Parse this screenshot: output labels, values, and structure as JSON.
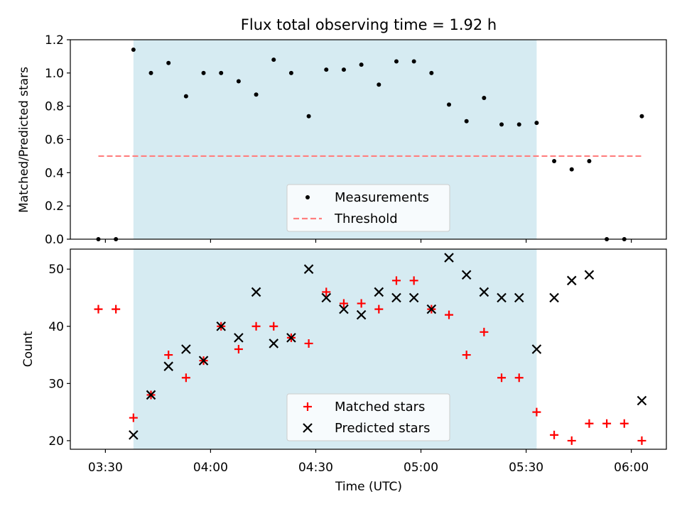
{
  "title": "Flux total observing time = 1.92 h",
  "chart_data": [
    {
      "type": "scatter",
      "ylabel": "Matched/Predicted stars",
      "ylim": [
        0,
        1.2
      ],
      "yticks": [
        0.0,
        0.2,
        0.4,
        0.6,
        0.8,
        1.0,
        1.2
      ],
      "ytick_labels": [
        "0.0",
        "0.2",
        "0.4",
        "0.6",
        "0.8",
        "1.0",
        "1.2"
      ],
      "xlim": [
        "03:20",
        "06:10"
      ],
      "grid": false,
      "legend_position": "bottom-center",
      "shaded_region": {
        "start": "03:38",
        "end": "05:33",
        "color": "#add8e6"
      },
      "series": [
        {
          "name": "Measurements",
          "marker": "dot",
          "color": "#000000",
          "x": [
            "03:28",
            "03:33",
            "03:38",
            "03:43",
            "03:48",
            "03:53",
            "03:58",
            "04:03",
            "04:08",
            "04:13",
            "04:18",
            "04:23",
            "04:28",
            "04:33",
            "04:38",
            "04:43",
            "04:48",
            "04:53",
            "04:58",
            "05:03",
            "05:08",
            "05:13",
            "05:18",
            "05:23",
            "05:28",
            "05:33",
            "05:38",
            "05:43",
            "05:48",
            "05:53",
            "05:58",
            "06:03"
          ],
          "y": [
            0.0,
            0.0,
            1.14,
            1.0,
            1.06,
            0.86,
            1.0,
            1.0,
            0.95,
            0.87,
            1.08,
            1.0,
            0.74,
            1.02,
            1.02,
            1.05,
            0.93,
            1.07,
            1.07,
            1.0,
            0.81,
            0.71,
            0.85,
            0.69,
            0.69,
            0.7,
            0.47,
            0.42,
            0.47,
            0.0,
            0.0,
            0.74
          ]
        },
        {
          "name": "Threshold",
          "style": "dashed",
          "color": "#ff7f7f",
          "x": [
            "03:28",
            "06:03"
          ],
          "y": [
            0.5,
            0.5
          ]
        }
      ]
    },
    {
      "type": "scatter",
      "ylabel": "Count",
      "xlabel": "Time (UTC)",
      "ylim": [
        18.5,
        53.5
      ],
      "yticks": [
        20,
        30,
        40,
        50
      ],
      "ytick_labels": [
        "20",
        "30",
        "40",
        "50"
      ],
      "xticks": [
        "03:30",
        "04:00",
        "04:30",
        "05:00",
        "05:30",
        "06:00"
      ],
      "xlim": [
        "03:20",
        "06:10"
      ],
      "grid": false,
      "legend_position": "bottom-center",
      "shaded_region": {
        "start": "03:38",
        "end": "05:33",
        "color": "#add8e6"
      },
      "series": [
        {
          "name": "Matched stars",
          "marker": "plus",
          "color": "#ff0000",
          "x": [
            "03:28",
            "03:33",
            "03:38",
            "03:43",
            "03:48",
            "03:53",
            "03:58",
            "04:03",
            "04:08",
            "04:13",
            "04:18",
            "04:23",
            "04:28",
            "04:33",
            "04:38",
            "04:43",
            "04:48",
            "04:53",
            "04:58",
            "05:03",
            "05:08",
            "05:13",
            "05:18",
            "05:23",
            "05:28",
            "05:33",
            "05:38",
            "05:43",
            "05:48",
            "05:53",
            "05:58",
            "06:03"
          ],
          "y": [
            43,
            43,
            24,
            28,
            35,
            31,
            34,
            40,
            36,
            40,
            40,
            38,
            37,
            46,
            44,
            44,
            43,
            48,
            48,
            43,
            42,
            35,
            39,
            31,
            31,
            25,
            21,
            20,
            23,
            23,
            23,
            20
          ]
        },
        {
          "name": "Predicted stars",
          "marker": "x",
          "color": "#000000",
          "x": [
            "03:38",
            "03:43",
            "03:48",
            "03:53",
            "03:58",
            "04:03",
            "04:08",
            "04:13",
            "04:18",
            "04:23",
            "04:28",
            "04:33",
            "04:38",
            "04:43",
            "04:48",
            "04:53",
            "04:58",
            "05:03",
            "05:08",
            "05:13",
            "05:18",
            "05:23",
            "05:28",
            "05:33",
            "05:38",
            "05:43",
            "05:48",
            "06:03"
          ],
          "y": [
            21,
            28,
            33,
            36,
            34,
            40,
            38,
            46,
            37,
            38,
            50,
            45,
            43,
            42,
            46,
            45,
            45,
            43,
            52,
            49,
            46,
            45,
            45,
            36,
            45,
            48,
            49,
            27
          ]
        }
      ]
    }
  ]
}
